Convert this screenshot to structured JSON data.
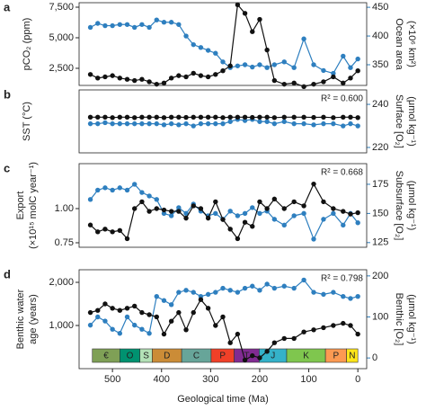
{
  "chart_data": [
    {
      "type": "line",
      "letter": "a",
      "ylabel": [
        "pCO₂ (ppm)"
      ],
      "y2label": [
        "Ocean area",
        "(×10⁶ km²)"
      ],
      "xlim": [
        568,
        -18
      ],
      "x": [
        545,
        530,
        515,
        500,
        485,
        470,
        455,
        440,
        425,
        410,
        395,
        380,
        365,
        350,
        335,
        320,
        305,
        290,
        275,
        260,
        245,
        230,
        215,
        200,
        185,
        170,
        150,
        130,
        110,
        90,
        70,
        50,
        30,
        15,
        0
      ],
      "ylim": [
        1100,
        7868
      ],
      "yticks": [
        {
          "value": 2500,
          "label": "2,500"
        },
        {
          "value": 5000,
          "label": "5,000"
        },
        {
          "value": 7500,
          "label": "7,500"
        }
      ],
      "y2lim": [
        314,
        458
      ],
      "y2ticks": [
        350,
        400,
        450
      ],
      "series": [
        {
          "name": "pCO₂",
          "color": "#111111",
          "values": [
            2000,
            1700,
            1800,
            1900,
            1700,
            1600,
            1500,
            1600,
            1400,
            1200,
            1300,
            1700,
            1900,
            1800,
            2100,
            1900,
            1800,
            2000,
            2300,
            2700,
            7700,
            7000,
            5500,
            6500,
            4000,
            1500,
            1200,
            1300,
            1000,
            1200,
            1400,
            1800,
            1300,
            1700,
            2300
          ]
        },
        {
          "name": "Ocean area",
          "color": "#2e7fbf",
          "axis": "y2",
          "values": [
            415,
            422,
            418,
            418,
            420,
            420,
            415,
            420,
            415,
            428,
            424,
            424,
            420,
            400,
            385,
            380,
            375,
            370,
            355,
            345,
            348,
            350,
            346,
            350,
            345,
            350,
            355,
            345,
            395,
            350,
            340,
            335,
            365,
            345,
            360
          ]
        }
      ]
    },
    {
      "type": "line",
      "letter": "b",
      "ylabel": [
        "SST (°C)"
      ],
      "y2label": [
        "Surface [O₂]",
        "(μmol kg⁻¹)"
      ],
      "annotation": "R² = 0.600",
      "xlim": [
        568,
        -18
      ],
      "x": [
        545,
        530,
        515,
        500,
        485,
        470,
        455,
        440,
        425,
        410,
        395,
        380,
        365,
        350,
        335,
        320,
        305,
        290,
        275,
        260,
        245,
        230,
        215,
        200,
        185,
        170,
        150,
        130,
        110,
        90,
        70,
        50,
        30,
        15,
        0
      ],
      "ylim": [
        10,
        40
      ],
      "yticks": [],
      "y2lim": [
        217.5,
        246.7
      ],
      "y2ticks": [
        220,
        240
      ],
      "series": [
        {
          "name": "SST",
          "color": "#111111",
          "values": [
            27,
            27,
            27,
            26.8,
            27,
            27,
            26.8,
            27,
            27,
            27,
            26.8,
            27,
            27,
            26.9,
            27,
            27,
            27,
            27,
            26.8,
            27,
            27,
            27,
            26.9,
            27,
            27,
            26.8,
            27,
            27,
            27,
            26.9,
            27,
            26.8,
            27,
            27,
            26.8
          ]
        },
        {
          "name": "Surface [O₂]",
          "color": "#2e7fbf",
          "axis": "y2",
          "values": [
            231,
            231,
            231.5,
            231,
            231,
            231,
            231,
            231,
            231,
            231,
            230.5,
            231,
            230.5,
            231,
            230,
            231,
            231,
            231,
            231,
            232,
            233,
            232.5,
            233,
            232,
            232,
            231,
            232,
            231,
            231,
            230.5,
            231,
            231,
            230,
            231,
            230
          ]
        }
      ]
    },
    {
      "type": "line",
      "letter": "c",
      "ylabel": [
        "Export",
        "(×10¹⁵ molC year⁻¹)"
      ],
      "y2label": [
        "Subsurface [O₂]",
        "(μmol kg⁻¹)"
      ],
      "annotation": "R² = 0.668",
      "xlim": [
        568,
        -18
      ],
      "x": [
        545,
        530,
        515,
        500,
        485,
        470,
        455,
        440,
        425,
        410,
        395,
        380,
        365,
        350,
        335,
        320,
        305,
        290,
        275,
        260,
        245,
        230,
        215,
        200,
        185,
        170,
        150,
        130,
        110,
        90,
        70,
        50,
        30,
        15,
        0
      ],
      "ylim": [
        0.717,
        1.329
      ],
      "yticks": [
        {
          "value": 0.75,
          "label": "0.75"
        },
        {
          "value": 1,
          "label": "1.00"
        }
      ],
      "y2lim": [
        121,
        192.7
      ],
      "y2ticks": [
        125,
        150,
        175
      ],
      "series": [
        {
          "name": "Export",
          "color": "#111111",
          "values": [
            0.88,
            0.83,
            0.85,
            0.83,
            0.84,
            0.78,
            1.0,
            1.05,
            0.98,
            1.0,
            0.99,
            0.98,
            0.98,
            0.93,
            1.02,
            1.0,
            0.93,
            1.05,
            0.92,
            0.85,
            0.78,
            0.9,
            0.87,
            1.05,
            1.0,
            1.07,
            1.0,
            1.05,
            1.02,
            1.18,
            1.05,
            1.0,
            0.98,
            0.96,
            0.97
          ]
        },
        {
          "name": "Subsurface [O₂]",
          "color": "#2e7fbf",
          "axis": "y2",
          "values": [
            162,
            170,
            172,
            170,
            172,
            170,
            175,
            168,
            165,
            162,
            150,
            148,
            155,
            150,
            158,
            152,
            148,
            150,
            145,
            152,
            148,
            150,
            155,
            150,
            152,
            145,
            140,
            148,
            150,
            128,
            145,
            150,
            140,
            150,
            142
          ]
        }
      ]
    },
    {
      "type": "line",
      "letter": "d",
      "ylabel": [
        "Benthic water",
        "age (years)"
      ],
      "y2label": [
        "Benthic [O₂]",
        "(μmol kg⁻¹)"
      ],
      "annotation": "R² = 0.798",
      "xlabel": "Geological time (Ma)",
      "xlim": [
        568,
        -18
      ],
      "xticks": [
        500,
        400,
        300,
        200,
        100,
        0
      ],
      "x": [
        545,
        530,
        515,
        500,
        485,
        470,
        455,
        440,
        425,
        410,
        395,
        380,
        365,
        350,
        335,
        320,
        305,
        290,
        275,
        260,
        245,
        230,
        215,
        200,
        185,
        170,
        150,
        130,
        110,
        90,
        70,
        50,
        30,
        15,
        0
      ],
      "ylim": [
        0,
        2292
      ],
      "yticks": [
        {
          "value": 1000,
          "label": "1,000"
        },
        {
          "value": 2000,
          "label": "2,000"
        }
      ],
      "y2lim": [
        -26,
        215
      ],
      "y2ticks": [
        0,
        100,
        200
      ],
      "series": [
        {
          "name": "Benthic water age",
          "color": "#111111",
          "values": [
            1300,
            1350,
            1500,
            1400,
            1350,
            1400,
            1450,
            1300,
            1250,
            1200,
            800,
            1100,
            1300,
            900,
            1300,
            1600,
            1400,
            1000,
            1200,
            600,
            800,
            200,
            300,
            250,
            400,
            600,
            700,
            700,
            850,
            900,
            950,
            1000,
            1050,
            1000,
            800
          ]
        },
        {
          "name": "Benthic [O₂]",
          "color": "#2e7fbf",
          "axis": "y2",
          "values": [
            80,
            100,
            90,
            70,
            60,
            100,
            80,
            70,
            60,
            150,
            140,
            130,
            160,
            165,
            160,
            150,
            155,
            160,
            170,
            165,
            160,
            170,
            175,
            165,
            180,
            170,
            175,
            170,
            190,
            160,
            155,
            160,
            150,
            145,
            150
          ]
        }
      ],
      "periods": [
        {
          "label": "€",
          "color": "#7fa056",
          "start": 541,
          "end": 485
        },
        {
          "label": "O",
          "color": "#009270",
          "start": 485,
          "end": 444
        },
        {
          "label": "S",
          "color": "#b3e1b6",
          "start": 444,
          "end": 419
        },
        {
          "label": "D",
          "color": "#cb8c37",
          "start": 419,
          "end": 359
        },
        {
          "label": "C",
          "color": "#67a599",
          "start": 359,
          "end": 299
        },
        {
          "label": "P",
          "color": "#f04028",
          "start": 299,
          "end": 252
        },
        {
          "label": "T",
          "color": "#812b92",
          "start": 252,
          "end": 201
        },
        {
          "label": "J",
          "color": "#34b2c9",
          "start": 201,
          "end": 145
        },
        {
          "label": "K",
          "color": "#7fc64e",
          "start": 145,
          "end": 66
        },
        {
          "label": "P",
          "color": "#fd9a52",
          "start": 66,
          "end": 23
        },
        {
          "label": "N",
          "color": "#ffe619",
          "start": 23,
          "end": 0
        }
      ]
    }
  ]
}
